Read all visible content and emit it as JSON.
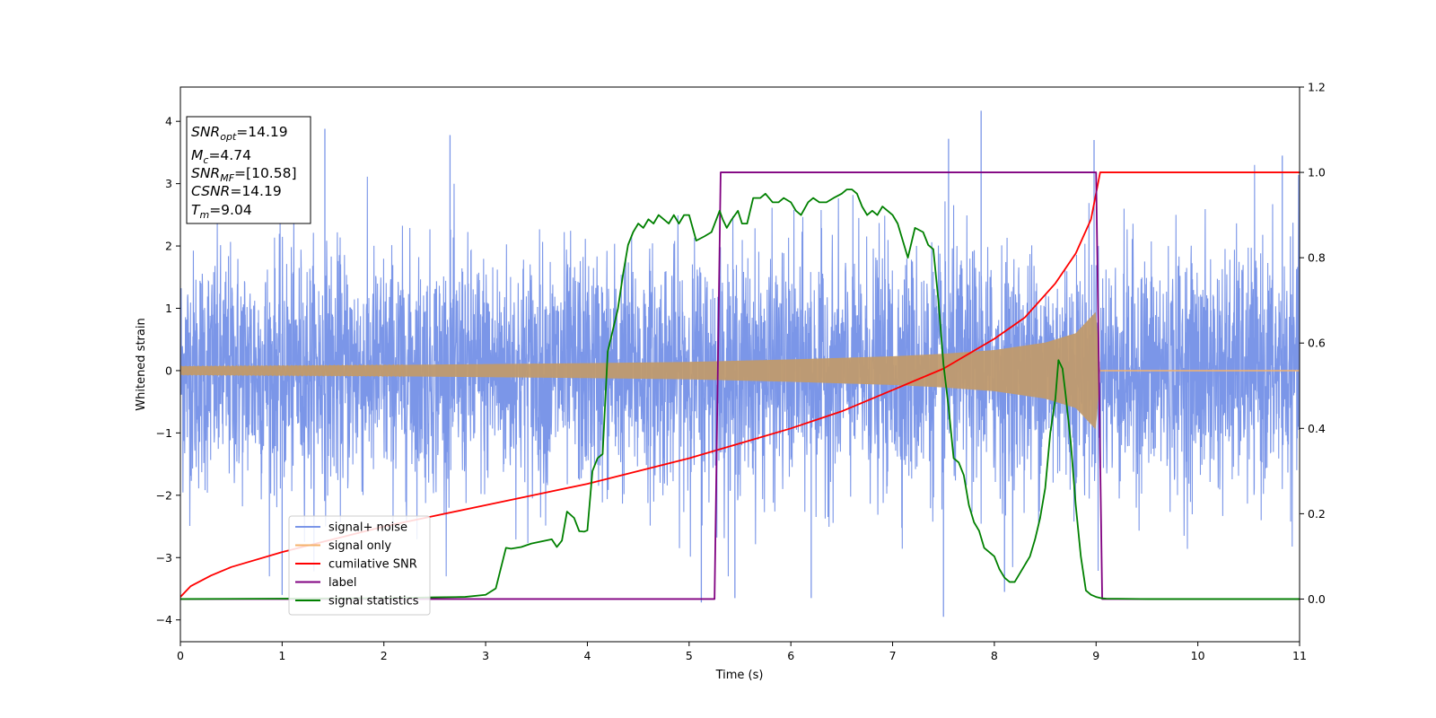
{
  "chart_data": {
    "type": "line",
    "xlabel": "Time (s)",
    "ylabel": "Whitened strain",
    "xlim": [
      0,
      11
    ],
    "ylim_left": [
      -4.35,
      4.55
    ],
    "ylim_right": [
      -0.1,
      1.2
    ],
    "x_ticks": [
      "0",
      "1",
      "2",
      "3",
      "4",
      "5",
      "6",
      "7",
      "8",
      "9",
      "10",
      "11"
    ],
    "y_ticks_left": [
      "−4",
      "−3",
      "−2",
      "−1",
      "0",
      "1",
      "2",
      "3",
      "4"
    ],
    "y_ticks_right": [
      "0.0",
      "0.2",
      "0.4",
      "0.6",
      "0.8",
      "1.0",
      "1.2"
    ],
    "y_tick_values_left": [
      -4,
      -3,
      -2,
      -1,
      0,
      1,
      2,
      3,
      4
    ],
    "y_tick_values_right": [
      0.0,
      0.2,
      0.4,
      0.6,
      0.8,
      1.0,
      1.2
    ],
    "info_box": {
      "snr_opt": {
        "base": "SNR",
        "sub": "opt",
        "value": "=14.19"
      },
      "mc": {
        "base": "M",
        "sub": "c",
        "value": "=4.74"
      },
      "snr_mf": {
        "base": "SNR",
        "sub": "MF",
        "value": "=[10.58]"
      },
      "csnr": {
        "base": "CSNR",
        "value": "=14.19"
      },
      "tm": {
        "base": "T",
        "sub": "m",
        "value": "=9.04"
      }
    },
    "legend": {
      "placement": "lower-left",
      "entries": [
        {
          "label": "signal+ noise",
          "color": "#7b96e8"
        },
        {
          "label": "signal only",
          "color": "#f5b26b"
        },
        {
          "label": "cumilative SNR",
          "color": "#ff0000"
        },
        {
          "label": "label",
          "color": "#800080"
        },
        {
          "label": "signal statistics",
          "color": "#008000"
        }
      ]
    },
    "series": [
      {
        "name": "signal+ noise",
        "axis": "left",
        "color": "#7b96e8",
        "description_of_extent": "dense noise band",
        "envelope_typical": [
          -2.1,
          2.3
        ],
        "spikes": [
          {
            "x": 1.42,
            "y": 3.88
          },
          {
            "x": 2.65,
            "y": 3.78
          },
          {
            "x": 7.87,
            "y": 4.17
          },
          {
            "x": 7.55,
            "y": 3.72
          },
          {
            "x": 8.98,
            "y": 3.7
          },
          {
            "x": 10.83,
            "y": 3.45
          },
          {
            "x": 5.12,
            "y": -3.72
          },
          {
            "x": 7.5,
            "y": -3.95
          },
          {
            "x": 5.45,
            "y": -3.65
          },
          {
            "x": 1.0,
            "y": -3.6
          },
          {
            "x": 6.2,
            "y": -3.65
          },
          {
            "x": 8.1,
            "y": -3.55
          }
        ]
      },
      {
        "name": "signal only",
        "axis": "left",
        "color": "#f5b26b",
        "chirp_envelope": [
          {
            "x": 0,
            "a": 0.07
          },
          {
            "x": 2,
            "a": 0.09
          },
          {
            "x": 4,
            "a": 0.12
          },
          {
            "x": 5,
            "a": 0.14
          },
          {
            "x": 6,
            "a": 0.18
          },
          {
            "x": 7,
            "a": 0.23
          },
          {
            "x": 7.5,
            "a": 0.27
          },
          {
            "x": 8,
            "a": 0.33
          },
          {
            "x": 8.5,
            "a": 0.45
          },
          {
            "x": 8.8,
            "a": 0.6
          },
          {
            "x": 9.0,
            "a": 0.95
          },
          {
            "x": 9.04,
            "a": 0.0
          }
        ]
      },
      {
        "name": "cumilative SNR",
        "axis": "right",
        "color": "#ff0000",
        "x": [
          0,
          0.1,
          0.3,
          0.5,
          1,
          1.5,
          2,
          2.5,
          3,
          3.5,
          4,
          4.5,
          5,
          5.5,
          6,
          6.5,
          7,
          7.5,
          8,
          8.3,
          8.6,
          8.8,
          8.95,
          9.04,
          11
        ],
        "y": [
          0.005,
          0.03,
          0.055,
          0.075,
          0.11,
          0.14,
          0.17,
          0.195,
          0.22,
          0.245,
          0.27,
          0.3,
          0.33,
          0.365,
          0.4,
          0.44,
          0.49,
          0.54,
          0.61,
          0.66,
          0.74,
          0.81,
          0.89,
          1.0,
          1.0
        ]
      },
      {
        "name": "label",
        "axis": "right",
        "color": "#800080",
        "x": [
          0,
          5.25,
          5.31,
          9.0,
          9.06,
          11
        ],
        "y": [
          0,
          0,
          1,
          1,
          0,
          0
        ]
      },
      {
        "name": "signal statistics",
        "axis": "right",
        "color": "#008000",
        "x": [
          0,
          1,
          2,
          2.5,
          2.8,
          3.0,
          3.1,
          3.2,
          3.25,
          3.35,
          3.45,
          3.55,
          3.65,
          3.7,
          3.75,
          3.8,
          3.87,
          3.92,
          3.97,
          4.0,
          4.05,
          4.1,
          4.15,
          4.2,
          4.25,
          4.3,
          4.35,
          4.4,
          4.45,
          4.5,
          4.55,
          4.6,
          4.65,
          4.7,
          4.75,
          4.8,
          4.85,
          4.9,
          4.95,
          5.0,
          5.07,
          5.15,
          5.22,
          5.3,
          5.33,
          5.37,
          5.42,
          5.48,
          5.52,
          5.57,
          5.63,
          5.7,
          5.75,
          5.82,
          5.88,
          5.93,
          6.0,
          6.05,
          6.1,
          6.17,
          6.22,
          6.28,
          6.35,
          6.42,
          6.5,
          6.55,
          6.6,
          6.65,
          6.7,
          6.75,
          6.8,
          6.85,
          6.9,
          6.95,
          7.0,
          7.05,
          7.1,
          7.15,
          7.22,
          7.3,
          7.35,
          7.4,
          7.45,
          7.5,
          7.55,
          7.6,
          7.65,
          7.7,
          7.75,
          7.8,
          7.85,
          7.9,
          7.95,
          8.0,
          8.05,
          8.1,
          8.15,
          8.2,
          8.25,
          8.3,
          8.35,
          8.4,
          8.45,
          8.5,
          8.55,
          8.6,
          8.63,
          8.67,
          8.7,
          8.75,
          8.8,
          8.85,
          8.9,
          8.95,
          9.0,
          9.05,
          9.1,
          9.5,
          10,
          11
        ],
        "y": [
          0,
          0.001,
          0.002,
          0.004,
          0.005,
          0.01,
          0.025,
          0.12,
          0.118,
          0.122,
          0.13,
          0.135,
          0.14,
          0.122,
          0.137,
          0.205,
          0.19,
          0.159,
          0.158,
          0.161,
          0.3,
          0.33,
          0.34,
          0.58,
          0.63,
          0.68,
          0.76,
          0.83,
          0.86,
          0.88,
          0.87,
          0.89,
          0.88,
          0.9,
          0.89,
          0.88,
          0.9,
          0.88,
          0.9,
          0.9,
          0.84,
          0.85,
          0.86,
          0.91,
          0.89,
          0.87,
          0.89,
          0.91,
          0.88,
          0.88,
          0.94,
          0.94,
          0.95,
          0.93,
          0.93,
          0.94,
          0.93,
          0.91,
          0.9,
          0.93,
          0.94,
          0.93,
          0.93,
          0.94,
          0.95,
          0.96,
          0.96,
          0.95,
          0.92,
          0.9,
          0.91,
          0.9,
          0.92,
          0.91,
          0.9,
          0.88,
          0.84,
          0.8,
          0.87,
          0.86,
          0.83,
          0.82,
          0.7,
          0.55,
          0.45,
          0.33,
          0.32,
          0.29,
          0.22,
          0.18,
          0.16,
          0.12,
          0.11,
          0.1,
          0.07,
          0.05,
          0.04,
          0.04,
          0.06,
          0.08,
          0.1,
          0.14,
          0.19,
          0.26,
          0.39,
          0.47,
          0.56,
          0.54,
          0.48,
          0.37,
          0.22,
          0.1,
          0.02,
          0.01,
          0.005,
          0.002,
          0.001,
          0,
          0,
          0
        ]
      }
    ]
  }
}
